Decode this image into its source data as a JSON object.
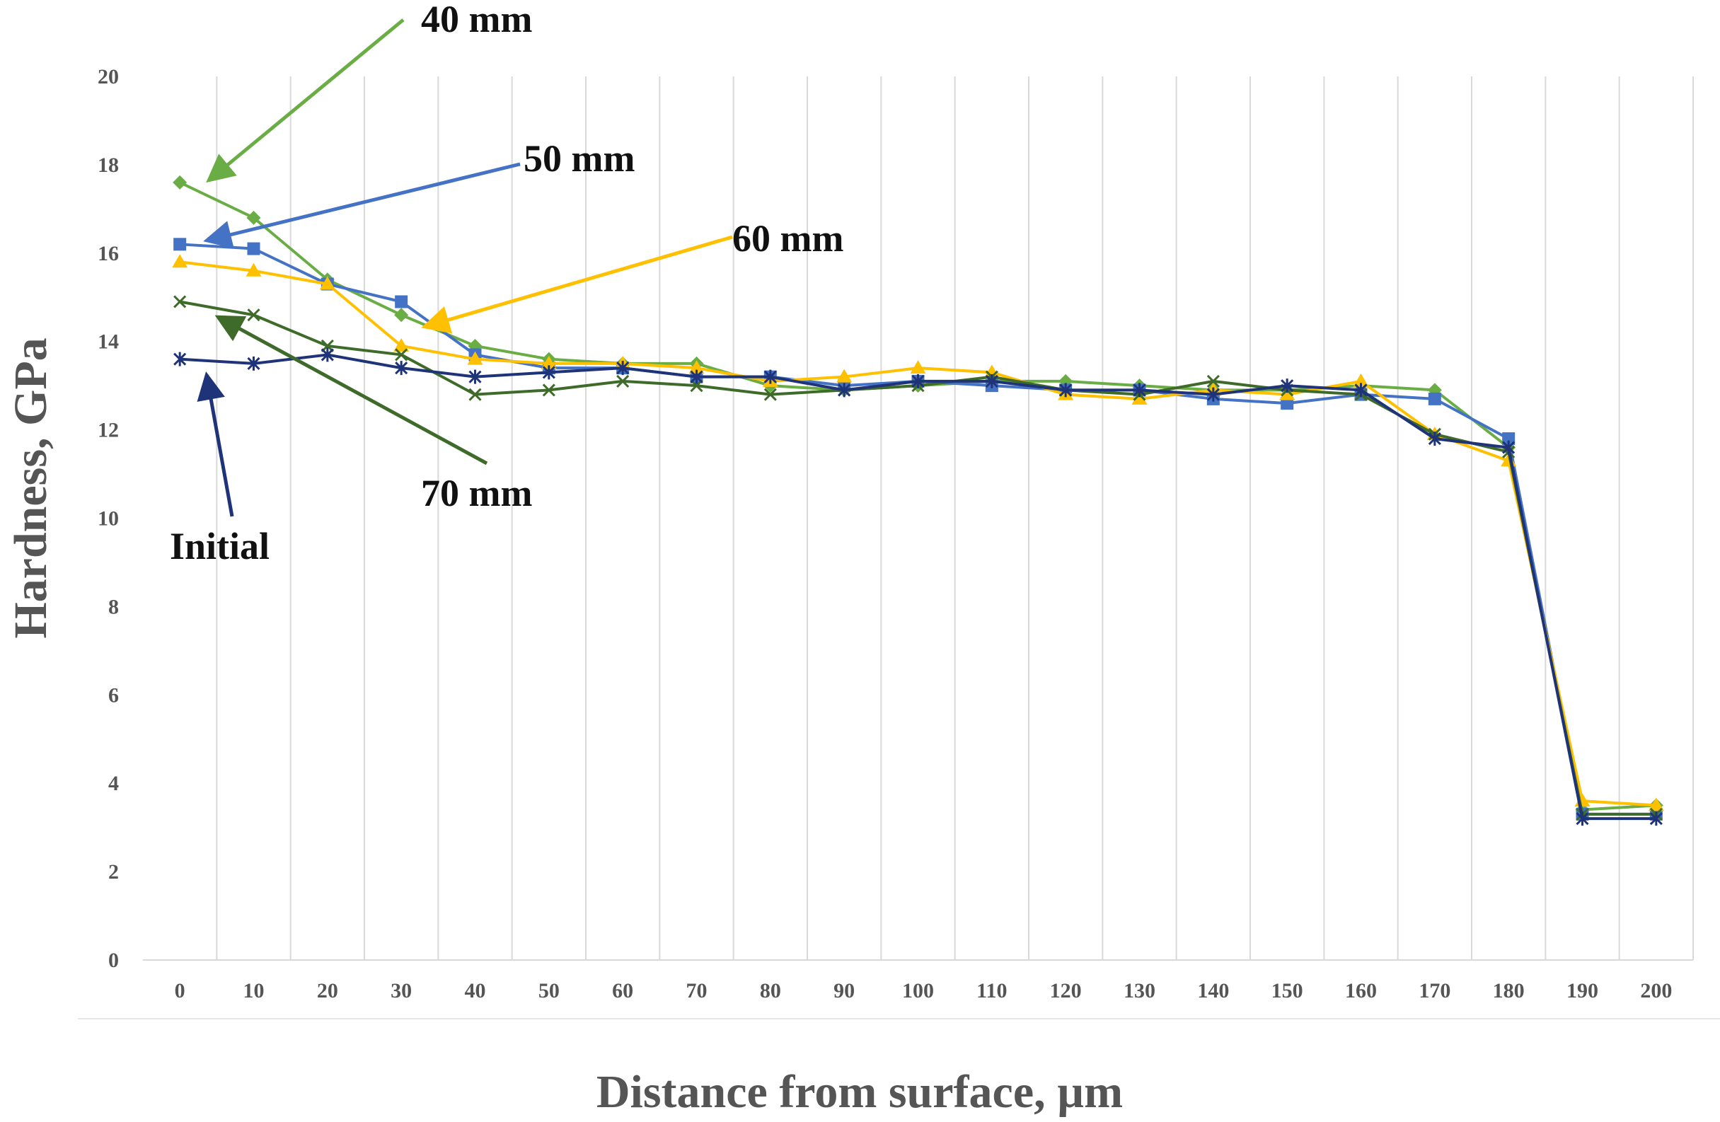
{
  "chart_data": {
    "type": "line",
    "title": "",
    "xlabel": "Distance from surface, µm",
    "ylabel": "Hardness, GPa",
    "x": [
      0,
      10,
      20,
      30,
      40,
      50,
      60,
      70,
      80,
      90,
      100,
      110,
      120,
      130,
      140,
      150,
      160,
      170,
      180,
      190,
      200
    ],
    "x_tick_labels": [
      "0",
      "10",
      "20",
      "30",
      "40",
      "50",
      "60",
      "70",
      "80",
      "90",
      "100",
      "110",
      "120",
      "130",
      "140",
      "150",
      "160",
      "170",
      "180",
      "190",
      "200"
    ],
    "y_tick_labels": [
      "0",
      "2",
      "4",
      "6",
      "8",
      "10",
      "12",
      "14",
      "16",
      "18",
      "20"
    ],
    "ylim": [
      0,
      20
    ],
    "grid": "vertical",
    "series": [
      {
        "name": "40 mm",
        "color": "#6aad45",
        "marker": "diamond",
        "values": [
          17.6,
          16.8,
          15.4,
          14.6,
          13.9,
          13.6,
          13.5,
          13.5,
          13.0,
          12.9,
          13.0,
          13.1,
          13.1,
          13.0,
          12.9,
          12.9,
          13.0,
          12.9,
          11.6,
          3.4,
          3.5
        ]
      },
      {
        "name": "50 mm",
        "color": "#4472c4",
        "marker": "square",
        "values": [
          16.2,
          16.1,
          15.3,
          14.9,
          13.7,
          13.4,
          13.4,
          13.2,
          13.2,
          13.0,
          13.1,
          13.0,
          12.9,
          12.9,
          12.7,
          12.6,
          12.8,
          12.7,
          11.8,
          3.3,
          3.3
        ]
      },
      {
        "name": "60 mm",
        "color": "#ffc000",
        "marker": "triangle",
        "values": [
          15.8,
          15.6,
          15.3,
          13.9,
          13.6,
          13.5,
          13.5,
          13.4,
          13.1,
          13.2,
          13.4,
          13.3,
          12.8,
          12.7,
          12.9,
          12.8,
          13.1,
          11.9,
          11.3,
          3.6,
          3.5
        ]
      },
      {
        "name": "70 mm",
        "color": "#3f6b2a",
        "marker": "x",
        "values": [
          14.9,
          14.6,
          13.9,
          13.7,
          12.8,
          12.9,
          13.1,
          13.0,
          12.8,
          12.9,
          13.0,
          13.2,
          12.9,
          12.8,
          13.1,
          12.9,
          12.8,
          11.9,
          11.5,
          3.3,
          3.3
        ]
      },
      {
        "name": "Initial",
        "color": "#1f3478",
        "marker": "star",
        "values": [
          13.6,
          13.5,
          13.7,
          13.4,
          13.2,
          13.3,
          13.4,
          13.2,
          13.2,
          12.9,
          13.1,
          13.1,
          12.9,
          12.9,
          12.8,
          13.0,
          12.9,
          11.8,
          11.6,
          3.2,
          3.2
        ]
      }
    ],
    "annotations": [
      {
        "text": "40 mm",
        "series": "40 mm",
        "color": "#6aad45"
      },
      {
        "text": "50 mm",
        "series": "50 mm",
        "color": "#4472c4"
      },
      {
        "text": "60 mm",
        "series": "60 mm",
        "color": "#ffc000"
      },
      {
        "text": "70 mm",
        "series": "70 mm",
        "color": "#3f6b2a"
      },
      {
        "text": "Initial",
        "series": "Initial",
        "color": "#1f3478"
      }
    ]
  }
}
